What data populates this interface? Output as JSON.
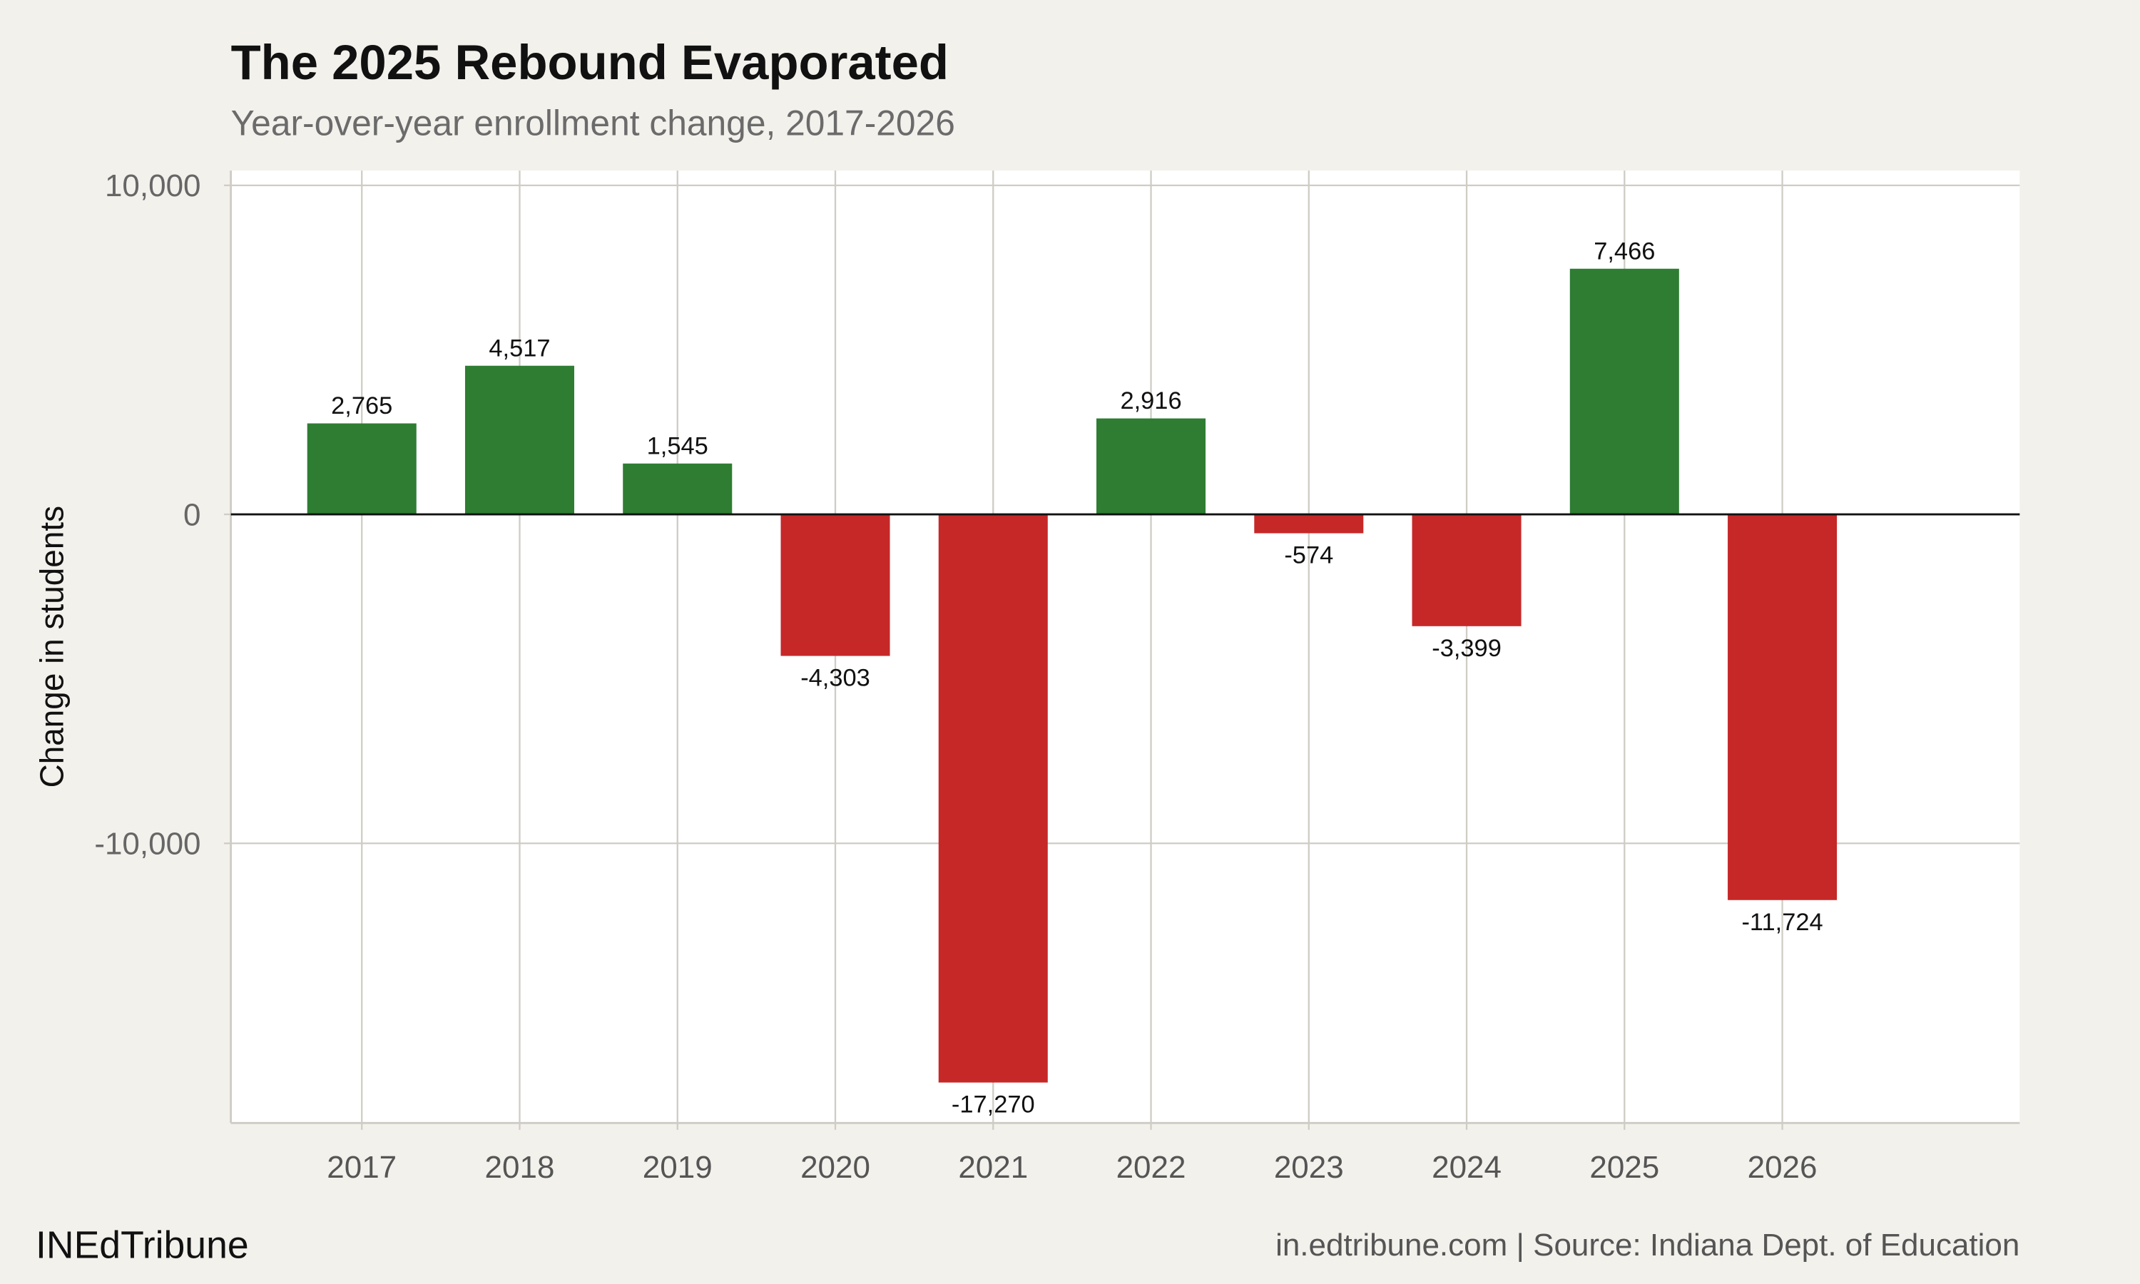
{
  "chart_data": {
    "type": "bar",
    "title": "The 2025 Rebound Evaporated",
    "subtitle": "Year-over-year enrollment change, 2017-2026",
    "y_label": "Change in students",
    "categories": [
      "2017",
      "2018",
      "2019",
      "2020",
      "2021",
      "2022",
      "2023",
      "2024",
      "2025",
      "2026"
    ],
    "values": [
      2765,
      4517,
      1545,
      -4303,
      -17270,
      2916,
      -574,
      -3399,
      7466,
      -11724
    ],
    "value_labels": [
      "2,765",
      "4,517",
      "1,545",
      "-4,303",
      "-17,270",
      "2,916",
      "-574",
      "-3,399",
      "7,466",
      "-11,724"
    ],
    "positive_color": "#2e7d32",
    "negative_color": "#c62828",
    "ylim": [
      -18500,
      10450
    ],
    "yticks": [
      {
        "value": -10000,
        "label": "-10,000"
      },
      0,
      {
        "value": 10000,
        "label": "10,000"
      }
    ],
    "grid": true,
    "footer_left": "INEdTribune",
    "footer_right": "in.edtribune.com | Source: Indiana Dept. of Education"
  }
}
